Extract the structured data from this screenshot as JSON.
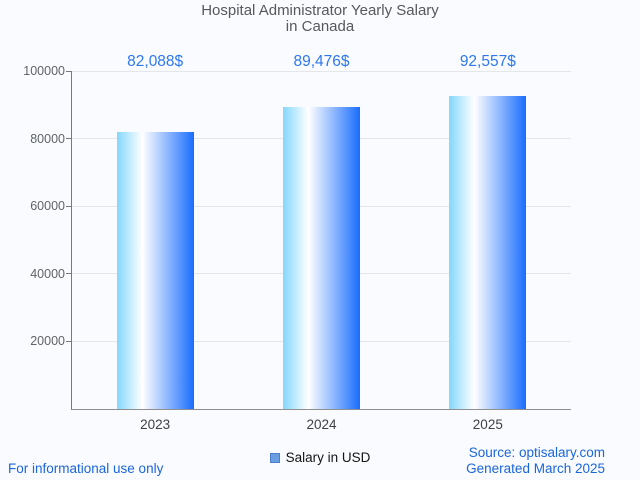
{
  "chart_data": {
    "type": "bar",
    "title": "Hospital Administrator Yearly Salary in Canada",
    "title_lines": [
      "Hospital Administrator Yearly Salary",
      "in Canada"
    ],
    "categories": [
      "2023",
      "2024",
      "2025"
    ],
    "values": [
      82088,
      89476,
      92557
    ],
    "annotations": [
      "82,088$",
      "89,476$",
      "92,557$"
    ],
    "series_name": "Salary in USD",
    "xlabel": "",
    "ylabel": "",
    "ylim": [
      0,
      100000
    ],
    "yticks": [
      20000,
      40000,
      60000,
      80000,
      100000
    ],
    "grid": true,
    "legend_position": "bottom"
  },
  "footer": {
    "left": "For informational use only",
    "source": "Source: optisalary.com",
    "generated": "Generated March 2025"
  },
  "colors": {
    "background": "#fafbfe",
    "title": "#56585c",
    "annotation": "#2d78f0",
    "footer_link": "#1a66db",
    "bar_gradient_start": "#84d7fc",
    "bar_gradient_mid": "#ffffff",
    "bar_gradient_end": "#1a6dfe",
    "legend_marker_fill": "#699ee3",
    "legend_marker_border": "#4d7ec9",
    "axis_line": "#7a7a7a",
    "baseline": "#8f8f8f",
    "gridline": "#e4e7ea",
    "ytick_label": "#5f6368",
    "xtick_label": "#3f4043",
    "legend_text": "#151515"
  }
}
